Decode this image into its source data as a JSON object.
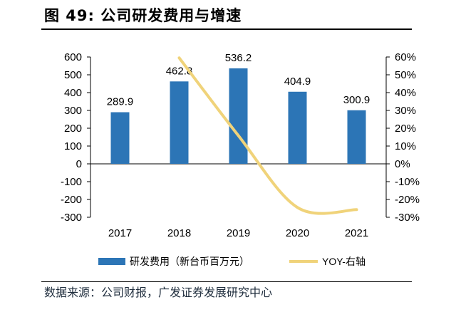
{
  "figure": {
    "title": "图 49: 公司研发费用与增速",
    "source": "数据来源：公司财报，广发证券发展研究中心"
  },
  "chart_data": {
    "type": "bar",
    "title": "",
    "categories": [
      "2017",
      "2018",
      "2019",
      "2020",
      "2021"
    ],
    "series": [
      {
        "name": "研发费用（新台币百万元）",
        "type": "bar",
        "axis": "left",
        "values": [
          289.9,
          462.8,
          536.2,
          404.9,
          300.9
        ],
        "labels": [
          "289.9",
          "462.8",
          "536.2",
          "404.9",
          "300.9"
        ]
      },
      {
        "name": "YOY-右轴",
        "type": "line",
        "axis": "right",
        "values": [
          null,
          0.595,
          0.159,
          -0.245,
          -0.257
        ]
      }
    ],
    "left_axis": {
      "ylim": [
        -300,
        600
      ],
      "ticks": [
        "600",
        "500",
        "400",
        "300",
        "200",
        "100",
        "0",
        "-100",
        "-200",
        "-300"
      ]
    },
    "right_axis": {
      "ylim": [
        -0.3,
        0.6
      ],
      "ticks": [
        "60%",
        "50%",
        "40%",
        "30%",
        "20%",
        "10%",
        "0%",
        "-10%",
        "-20%",
        "-30%"
      ]
    },
    "xlabel": "",
    "ylabel": "",
    "legend_position": "bottom",
    "colors": {
      "bar": "#2c75b6",
      "line": "#f0d37a"
    }
  }
}
